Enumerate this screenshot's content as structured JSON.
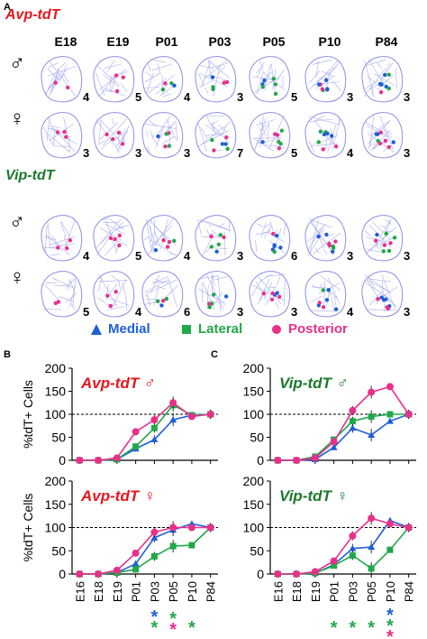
{
  "panel_a": {
    "letter": "A",
    "ages": [
      "E18",
      "E19",
      "P01",
      "P03",
      "P05",
      "P10",
      "P84"
    ],
    "male_symbol": "♂",
    "female_symbol": "♀",
    "groups": [
      {
        "title": "Avp-tdT",
        "color": "#e8141e",
        "rows": [
          {
            "sex": "♂",
            "counts": [
              "4",
              "5",
              "4",
              "3",
              "5",
              "3",
              "3"
            ]
          },
          {
            "sex": "♀",
            "counts": [
              "3",
              "3",
              "3",
              "7",
              "5",
              "4",
              "3"
            ]
          }
        ]
      },
      {
        "title": "Vip-tdT",
        "color": "#1a7a2a",
        "rows": [
          {
            "sex": "♂",
            "counts": [
              "4",
              "5",
              "4",
              "3",
              "6",
              "3",
              "3"
            ]
          },
          {
            "sex": "♀",
            "counts": [
              "5",
              "4",
              "6",
              "3",
              "3",
              "4",
              "3"
            ]
          }
        ]
      }
    ],
    "legend": [
      {
        "label": "Medial",
        "color": "#1f5fd6",
        "icon": "triangle-marker-icon"
      },
      {
        "label": "Lateral",
        "color": "#21a84a",
        "icon": "square-marker-icon"
      },
      {
        "label": "Posterior",
        "color": "#e8308a",
        "icon": "circle-marker-icon"
      }
    ]
  },
  "panel_b": {
    "letter": "B"
  },
  "panel_c": {
    "letter": "C"
  },
  "colors": {
    "medial": "#1f5fd6",
    "lateral": "#21a84a",
    "posterior": "#e8308a",
    "avp_title": "#e8141e",
    "vip_title": "#1a7a2a"
  },
  "chart_data": [
    {
      "type": "line",
      "title": "Avp-tdT ♂",
      "ylabel": "%tdT+ Cells",
      "ylim": [
        0,
        200
      ],
      "yticks": [
        0,
        50,
        100,
        150,
        200
      ],
      "reference_line": 100,
      "categories": [
        "E16",
        "E18",
        "E19",
        "P01",
        "P03",
        "P05",
        "P10",
        "P84"
      ],
      "series": [
        {
          "name": "Medial",
          "values": [
            0,
            0,
            2,
            25,
            45,
            88,
            98,
            100
          ]
        },
        {
          "name": "Lateral",
          "values": [
            0,
            0,
            2,
            30,
            70,
            120,
            98,
            100
          ]
        },
        {
          "name": "Posterior",
          "values": [
            0,
            0,
            5,
            62,
            88,
            125,
            95,
            100
          ]
        }
      ]
    },
    {
      "type": "line",
      "title": "Avp-tdT ♀",
      "ylabel": "%tdT+ Cells",
      "ylim": [
        0,
        200
      ],
      "yticks": [
        0,
        50,
        100,
        150,
        200
      ],
      "reference_line": 100,
      "categories": [
        "E16",
        "E18",
        "E19",
        "P01",
        "P03",
        "P05",
        "P10",
        "P84"
      ],
      "series": [
        {
          "name": "Medial",
          "values": [
            0,
            0,
            3,
            22,
            78,
            95,
            108,
            100
          ]
        },
        {
          "name": "Lateral",
          "values": [
            0,
            0,
            3,
            10,
            38,
            60,
            62,
            100
          ]
        },
        {
          "name": "Posterior",
          "values": [
            0,
            0,
            8,
            45,
            90,
            100,
            100,
            100
          ]
        }
      ]
    },
    {
      "type": "line",
      "title": "Vip-tdT ♂",
      "ylabel": "",
      "ylim": [
        0,
        200
      ],
      "yticks": [
        0,
        50,
        100,
        150,
        200
      ],
      "reference_line": 100,
      "categories": [
        "E16",
        "E18",
        "E19",
        "P01",
        "P03",
        "P05",
        "P10",
        "P84"
      ],
      "series": [
        {
          "name": "Medial",
          "values": [
            0,
            0,
            2,
            28,
            70,
            55,
            85,
            100
          ]
        },
        {
          "name": "Lateral",
          "values": [
            0,
            0,
            8,
            45,
            85,
            95,
            100,
            100
          ]
        },
        {
          "name": "Posterior",
          "values": [
            0,
            0,
            5,
            40,
            108,
            148,
            160,
            100
          ]
        }
      ]
    },
    {
      "type": "line",
      "title": "Vip-tdT ♀",
      "ylabel": "",
      "ylim": [
        0,
        200
      ],
      "yticks": [
        0,
        50,
        100,
        150,
        200
      ],
      "reference_line": 100,
      "categories": [
        "E16",
        "E18",
        "E19",
        "P01",
        "P03",
        "P05",
        "P10",
        "P84"
      ],
      "series": [
        {
          "name": "Medial",
          "values": [
            0,
            0,
            2,
            20,
            55,
            58,
            115,
            100
          ]
        },
        {
          "name": "Lateral",
          "values": [
            0,
            0,
            2,
            18,
            40,
            12,
            52,
            100
          ]
        },
        {
          "name": "Posterior",
          "values": [
            0,
            0,
            5,
            28,
            82,
            120,
            108,
            100
          ]
        }
      ]
    }
  ],
  "significance": {
    "panel_b": [
      {
        "category": "P03",
        "stars": [
          "Medial",
          "Lateral"
        ]
      },
      {
        "category": "P05",
        "stars": [
          "Lateral",
          "Posterior"
        ]
      },
      {
        "category": "P10",
        "stars": [
          "Lateral"
        ]
      }
    ],
    "panel_c": [
      {
        "category": "P01",
        "stars": [
          "Lateral"
        ]
      },
      {
        "category": "P03",
        "stars": [
          "Lateral"
        ]
      },
      {
        "category": "P05",
        "stars": [
          "Lateral"
        ]
      },
      {
        "category": "P10",
        "stars": [
          "Medial",
          "Lateral",
          "Posterior"
        ]
      }
    ],
    "star_symbol": "*"
  }
}
